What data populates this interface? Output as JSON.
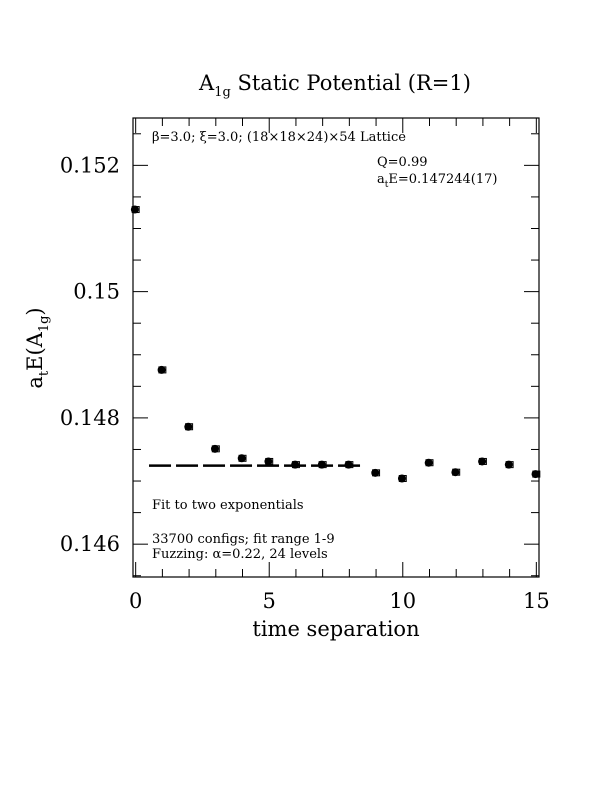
{
  "chart_data": {
    "type": "scatter",
    "title": {
      "base": "A",
      "sub": "1g",
      "rest": " Static Potential (R=1)"
    },
    "xlabel": "time separation",
    "ylabel": {
      "pre": "a",
      "sub1": "t",
      "mid": "E(A",
      "sub2": "1g",
      "post": ")"
    },
    "xlim": [
      -0.1,
      15.1
    ],
    "ylim": [
      0.14548,
      0.15275
    ],
    "x_ticks": [
      0,
      5,
      10,
      15
    ],
    "x_tick_labels": [
      "0",
      "5",
      "10",
      "15"
    ],
    "y_ticks": [
      0.146,
      0.148,
      0.15,
      0.152
    ],
    "y_tick_labels": [
      "0.146",
      "0.148",
      "0.15",
      "0.152"
    ],
    "x_minor_step": 1,
    "y_minor_step": 0.0005,
    "grid": false,
    "points": [
      {
        "x": 0,
        "y": 0.1513
      },
      {
        "x": 1,
        "y": 0.14876
      },
      {
        "x": 2,
        "y": 0.14786
      },
      {
        "x": 3,
        "y": 0.14751
      },
      {
        "x": 4,
        "y": 0.14736
      },
      {
        "x": 5,
        "y": 0.14731
      },
      {
        "x": 6,
        "y": 0.14726
      },
      {
        "x": 7,
        "y": 0.14726
      },
      {
        "x": 8,
        "y": 0.14726
      },
      {
        "x": 9,
        "y": 0.14713
      },
      {
        "x": 10,
        "y": 0.14704
      },
      {
        "x": 11,
        "y": 0.14729
      },
      {
        "x": 12,
        "y": 0.14714
      },
      {
        "x": 13,
        "y": 0.14731
      },
      {
        "x": 14,
        "y": 0.14726
      },
      {
        "x": 15,
        "y": 0.14711
      }
    ],
    "fit_line": {
      "x_start": 0.5,
      "x_end": 8.5,
      "y": 0.147244
    },
    "annotations": {
      "lattice": "β=3.0; ξ=3.0; (18×18×24)×54 Lattice",
      "q": "Q=0.99",
      "energy": {
        "pre": "a",
        "sub": "t",
        "post": "E=0.147244(17)"
      },
      "fit_type": "Fit to two exponentials",
      "configs": "33700 configs; fit range 1-9",
      "fuzzing": "Fuzzing: α=0.22, 24 levels"
    }
  }
}
